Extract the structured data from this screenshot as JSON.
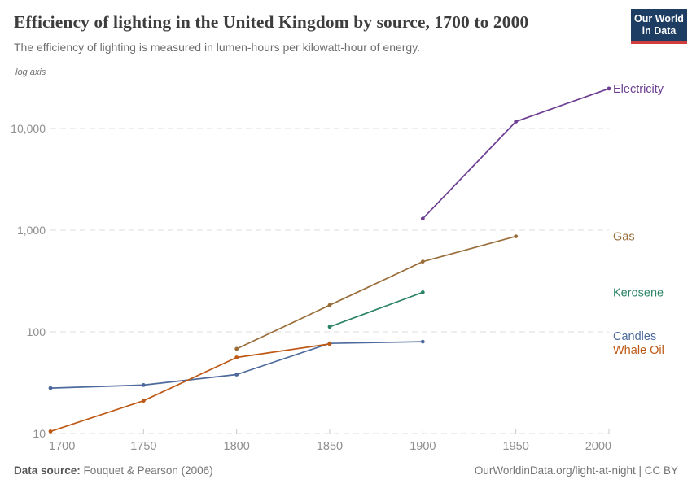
{
  "header": {
    "title": "Efficiency of lighting in the United Kingdom by source, 1700 to 2000",
    "subtitle": "The efficiency of lighting is measured in lumen-hours per kilowatt-hour of energy.",
    "logo": {
      "line1": "Our World",
      "line2": "in Data",
      "bg_color": "#1d3d63",
      "stripe_color": "#d13c3c"
    }
  },
  "chart_data": {
    "type": "line",
    "title": "Efficiency of lighting in the United Kingdom by source, 1700 to 2000",
    "axis_note": "log axis",
    "xlabel": "",
    "ylabel": "lumen-hours per kilowatt-hour",
    "y_scale": "log",
    "grid": "horizontal dashed",
    "legend_position": "right end labels",
    "x_domain": [
      1700,
      2000
    ],
    "ylim": [
      10,
      30000
    ],
    "x_ticks": [
      1700,
      1750,
      1800,
      1850,
      1900,
      1950,
      2000
    ],
    "y_ticks": [
      {
        "value": 10,
        "label": "10"
      },
      {
        "value": 100,
        "label": "100"
      },
      {
        "value": 1000,
        "label": "1,000"
      },
      {
        "value": 10000,
        "label": "10,000"
      }
    ],
    "series": [
      {
        "name": "Candles",
        "color": "#4c6a9c",
        "points": [
          [
            1700,
            28
          ],
          [
            1750,
            30
          ],
          [
            1800,
            38
          ],
          [
            1850,
            77
          ],
          [
            1900,
            80
          ]
        ]
      },
      {
        "name": "Whale Oil",
        "color": "#be5915",
        "points": [
          [
            1700,
            10.5
          ],
          [
            1750,
            21
          ],
          [
            1800,
            56
          ],
          [
            1850,
            76
          ]
        ]
      },
      {
        "name": "Gas",
        "color": "#996d39",
        "points": [
          [
            1800,
            68
          ],
          [
            1850,
            183
          ],
          [
            1900,
            490
          ],
          [
            1950,
            870
          ]
        ]
      },
      {
        "name": "Kerosene",
        "color": "#2c8465",
        "points": [
          [
            1850,
            112
          ],
          [
            1900,
            245
          ]
        ]
      },
      {
        "name": "Electricity",
        "color": "#6d3e91",
        "points": [
          [
            1900,
            1300
          ],
          [
            1950,
            11700
          ],
          [
            2000,
            24700
          ]
        ]
      }
    ]
  },
  "footer": {
    "source_label": "Data source:",
    "source_value": "Fouquet & Pearson (2006)",
    "attribution": "OurWorldinData.org/light-at-night | CC BY"
  },
  "colors": {
    "title": "#3d3d3d",
    "subtitle": "#6e6e6e",
    "axis_text": "#8f8f8f",
    "gridline": "#dcdcdc"
  }
}
